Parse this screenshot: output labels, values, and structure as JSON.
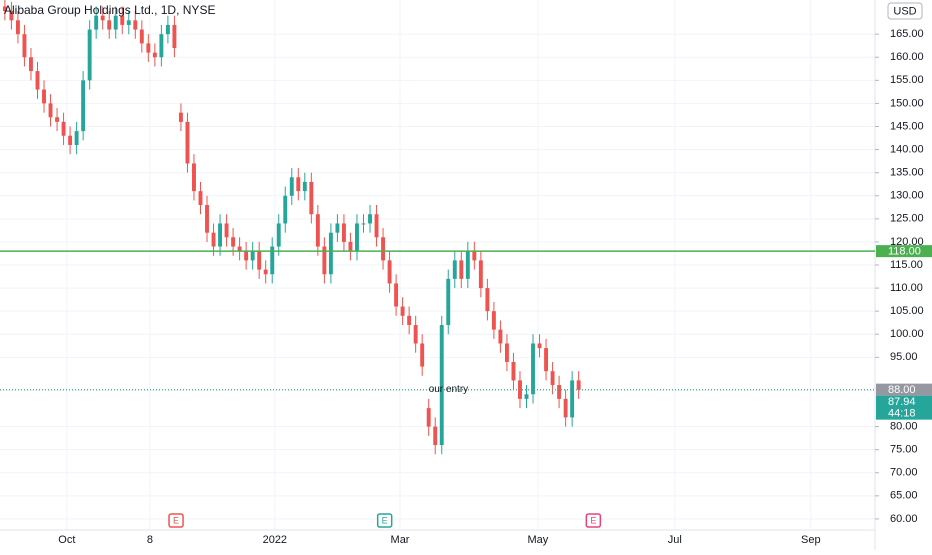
{
  "chart_data": {
    "type": "candlestick",
    "title": "Alibaba Group Holdings Ltd., 1D, NYSE",
    "currency": "USD",
    "x": [
      0,
      2,
      4,
      6,
      8,
      10,
      12,
      14,
      16,
      18,
      20,
      22,
      24,
      26,
      28,
      30,
      32,
      34,
      36,
      38,
      40,
      42,
      44,
      46,
      48,
      50,
      52,
      54,
      56,
      58,
      60,
      62,
      64,
      66,
      68,
      70,
      72,
      74,
      76,
      78,
      80,
      82,
      84,
      86,
      88,
      90,
      92,
      94,
      96,
      98,
      100,
      102,
      104,
      106,
      108,
      110,
      112,
      114,
      116,
      118,
      120,
      122,
      124,
      126,
      128,
      130,
      132,
      134,
      136,
      138,
      140,
      142,
      144,
      146,
      148,
      150,
      152,
      154,
      156,
      158,
      160,
      162,
      164,
      166,
      168,
      170,
      172,
      174,
      176
    ],
    "open": [
      171,
      170,
      168,
      165,
      160,
      157,
      153,
      150,
      147,
      146,
      143,
      141,
      144,
      155,
      166,
      169,
      168,
      166,
      169,
      167,
      168,
      166,
      163,
      161,
      160,
      165,
      167,
      148,
      146,
      137,
      131,
      128,
      122,
      119,
      124,
      121,
      119,
      118,
      116,
      118,
      114,
      113,
      119,
      124,
      130,
      134,
      131,
      133,
      126,
      119,
      113,
      122,
      124,
      120,
      118,
      124,
      124,
      126,
      121,
      116,
      111,
      106,
      104,
      102,
      98,
      84,
      80,
      76,
      102,
      112,
      116,
      112,
      118,
      116,
      110,
      105,
      101,
      98,
      94,
      90,
      86,
      87,
      98,
      97,
      92,
      89,
      86,
      82,
      90
    ],
    "high": [
      173,
      172,
      170,
      167,
      162,
      159,
      155,
      152,
      149,
      148,
      145,
      146,
      157,
      168,
      171,
      171,
      170,
      171,
      171,
      170,
      170,
      168,
      165,
      163,
      167,
      169,
      169,
      150,
      148,
      139,
      133,
      130,
      124,
      126,
      126,
      123,
      121,
      120,
      120,
      120,
      116,
      121,
      126,
      132,
      136,
      136,
      135,
      135,
      128,
      121,
      124,
      126,
      126,
      122,
      126,
      126,
      128,
      128,
      123,
      118,
      113,
      108,
      106,
      104,
      100,
      86,
      82,
      104,
      114,
      118,
      118,
      120,
      120,
      118,
      112,
      107,
      103,
      100,
      96,
      92,
      89,
      100,
      100,
      99,
      94,
      91,
      88,
      92,
      92
    ],
    "low": [
      168,
      166,
      163,
      158,
      155,
      151,
      148,
      145,
      144,
      141,
      139,
      139,
      142,
      153,
      164,
      166,
      164,
      164,
      165,
      165,
      164,
      161,
      159,
      158,
      158,
      163,
      160,
      144,
      135,
      129,
      126,
      120,
      117,
      117,
      119,
      117,
      116,
      114,
      114,
      112,
      111,
      111,
      117,
      122,
      128,
      129,
      129,
      124,
      117,
      111,
      111,
      120,
      118,
      116,
      116,
      122,
      122,
      119,
      114,
      109,
      104,
      102,
      100,
      96,
      91,
      78,
      74,
      74,
      100,
      110,
      110,
      110,
      114,
      108,
      103,
      99,
      96,
      92,
      88,
      84,
      84,
      85,
      95,
      90,
      87,
      84,
      80,
      80,
      86
    ],
    "close": [
      170,
      168,
      165,
      160,
      157,
      153,
      150,
      147,
      146,
      143,
      141,
      144,
      155,
      166,
      169,
      168,
      166,
      169,
      167,
      168,
      166,
      163,
      161,
      160,
      165,
      167,
      162,
      146,
      137,
      131,
      128,
      122,
      119,
      124,
      121,
      119,
      118,
      116,
      118,
      114,
      113,
      119,
      124,
      130,
      134,
      131,
      133,
      126,
      119,
      113,
      122,
      124,
      120,
      118,
      124,
      124,
      126,
      121,
      116,
      111,
      106,
      104,
      102,
      98,
      93,
      80,
      76,
      102,
      112,
      116,
      112,
      118,
      116,
      110,
      105,
      101,
      98,
      94,
      90,
      86,
      87,
      98,
      97,
      92,
      89,
      86,
      82,
      90,
      88
    ],
    "up_color": "#26a69a",
    "down_color": "#ef5350",
    "xlim": [
      -1.5,
      266.9
    ],
    "xticks": [
      {
        "value": 19,
        "label": "Oct"
      },
      {
        "value": 44.5,
        "label": "8"
      },
      {
        "value": 82.8,
        "label": "2022"
      },
      {
        "value": 121.2,
        "label": "Mar"
      },
      {
        "value": 163.5,
        "label": "May"
      },
      {
        "value": 205.5,
        "label": "Jul"
      },
      {
        "value": 247.2,
        "label": "Sep"
      }
    ],
    "ylim": [
      57.6,
      172.4
    ],
    "yticks": [
      {
        "value": 60,
        "label": "60.00"
      },
      {
        "value": 65,
        "label": "65.00"
      },
      {
        "value": 70,
        "label": "70.00"
      },
      {
        "value": 75,
        "label": "75.00"
      },
      {
        "value": 80,
        "label": "80.00"
      },
      {
        "value": 95,
        "label": "95.00"
      },
      {
        "value": 100,
        "label": "100.00"
      },
      {
        "value": 105,
        "label": "105.00"
      },
      {
        "value": 110,
        "label": "110.00"
      },
      {
        "value": 115,
        "label": "115.00"
      },
      {
        "value": 120,
        "label": "120.00"
      },
      {
        "value": 125,
        "label": "125.00"
      },
      {
        "value": 130,
        "label": "130.00"
      },
      {
        "value": 135,
        "label": "135.00"
      },
      {
        "value": 140,
        "label": "140.00"
      },
      {
        "value": 145,
        "label": "145.00"
      },
      {
        "value": 150,
        "label": "150.00"
      },
      {
        "value": 155,
        "label": "155.00"
      },
      {
        "value": 160,
        "label": "160.00"
      },
      {
        "value": 165,
        "label": "165.00"
      }
    ],
    "levels": [
      {
        "value": 118,
        "label": "118.00",
        "color": "#4caf50",
        "style": "solid"
      },
      {
        "value": 88,
        "label": "88.00",
        "color": "#9598a1",
        "style": "dotted"
      },
      {
        "value": 87.94,
        "label": "87.94",
        "color": "#26a69a",
        "style": "dotted"
      }
    ],
    "countdown": "44:18",
    "annotation": {
      "text": "our entry",
      "x": 130,
      "y": 88.1
    },
    "events": [
      {
        "x": 52.5,
        "label": "E",
        "color": "#ef5350"
      },
      {
        "x": 116.5,
        "label": "E",
        "color": "#26a69a"
      },
      {
        "x": 180.5,
        "label": "E",
        "color": "#ec407a"
      }
    ]
  }
}
